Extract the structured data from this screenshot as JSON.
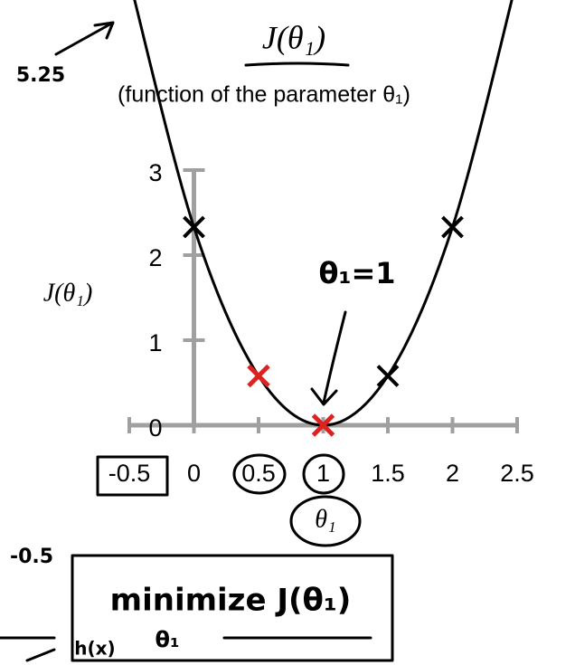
{
  "chart_data": {
    "type": "line",
    "title": "J(θ₁)",
    "subtitle": "(function of the parameter θ₁)",
    "y_label": "J(θ₁)",
    "x_label": "θ₁",
    "x": [
      -0.5,
      0,
      0.5,
      1,
      1.5,
      2,
      2.5
    ],
    "series": [
      {
        "color": "#000000",
        "values": [
          5.25,
          2.33,
          0.58,
          0,
          0.58,
          2.33,
          5.25
        ]
      }
    ],
    "xlim": [
      -0.5,
      2.5
    ],
    "xticks": [
      -0.5,
      0,
      0.5,
      1,
      1.5,
      2,
      2.5
    ],
    "ylim": [
      0,
      3
    ],
    "yticks": [
      0,
      1,
      2,
      3
    ],
    "annotations": [
      "5.25",
      "θ₁=1",
      "minimize J(θ₁)",
      "θ₁",
      "-0.5",
      "h(x)"
    ]
  }
}
